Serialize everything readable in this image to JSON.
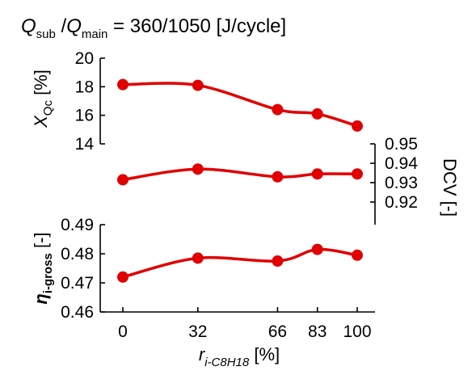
{
  "chart_data": {
    "type": "line",
    "title": {
      "q1": "Q",
      "q1_sub": "sub",
      "sep": " /",
      "q2": "Q",
      "q2_sub": "main",
      "value": " = 360/1050 [J/cycle]"
    },
    "xlabel": {
      "sym": "r",
      "sub": "i-C8H18",
      "unit": " [%]"
    },
    "x": [
      0,
      32,
      66,
      83,
      100
    ],
    "xticks": [
      "0",
      "32",
      "66",
      "83",
      "100"
    ],
    "color": "#e00000",
    "panels": [
      {
        "key": "xqc",
        "ylabel": {
          "sym": "X",
          "sub": "Qc",
          "unit": " [%]"
        },
        "yaxis": "left",
        "ylim": [
          14,
          20
        ],
        "yticks": [
          "14",
          "16",
          "18",
          "20"
        ],
        "values": [
          18.15,
          18.1,
          16.4,
          16.1,
          15.25
        ]
      },
      {
        "key": "dcv",
        "ylabel": {
          "sym": "DCV",
          "sub": "",
          "unit": " [-]"
        },
        "yaxis": "right",
        "ylim": [
          0.92,
          0.95
        ],
        "yticks": [
          "0.92",
          "0.93",
          "0.94",
          "0.95"
        ],
        "values": [
          0.9315,
          0.937,
          0.933,
          0.9345,
          0.9345
        ]
      },
      {
        "key": "eta",
        "ylabel": {
          "sym": "η",
          "sub": "i-gross",
          "unit": " [-]"
        },
        "yaxis": "left",
        "ylim": [
          0.46,
          0.49
        ],
        "yticks": [
          "0.46",
          "0.47",
          "0.48",
          "0.49"
        ],
        "values": [
          0.472,
          0.4785,
          0.4775,
          0.4815,
          0.4795
        ]
      }
    ]
  }
}
